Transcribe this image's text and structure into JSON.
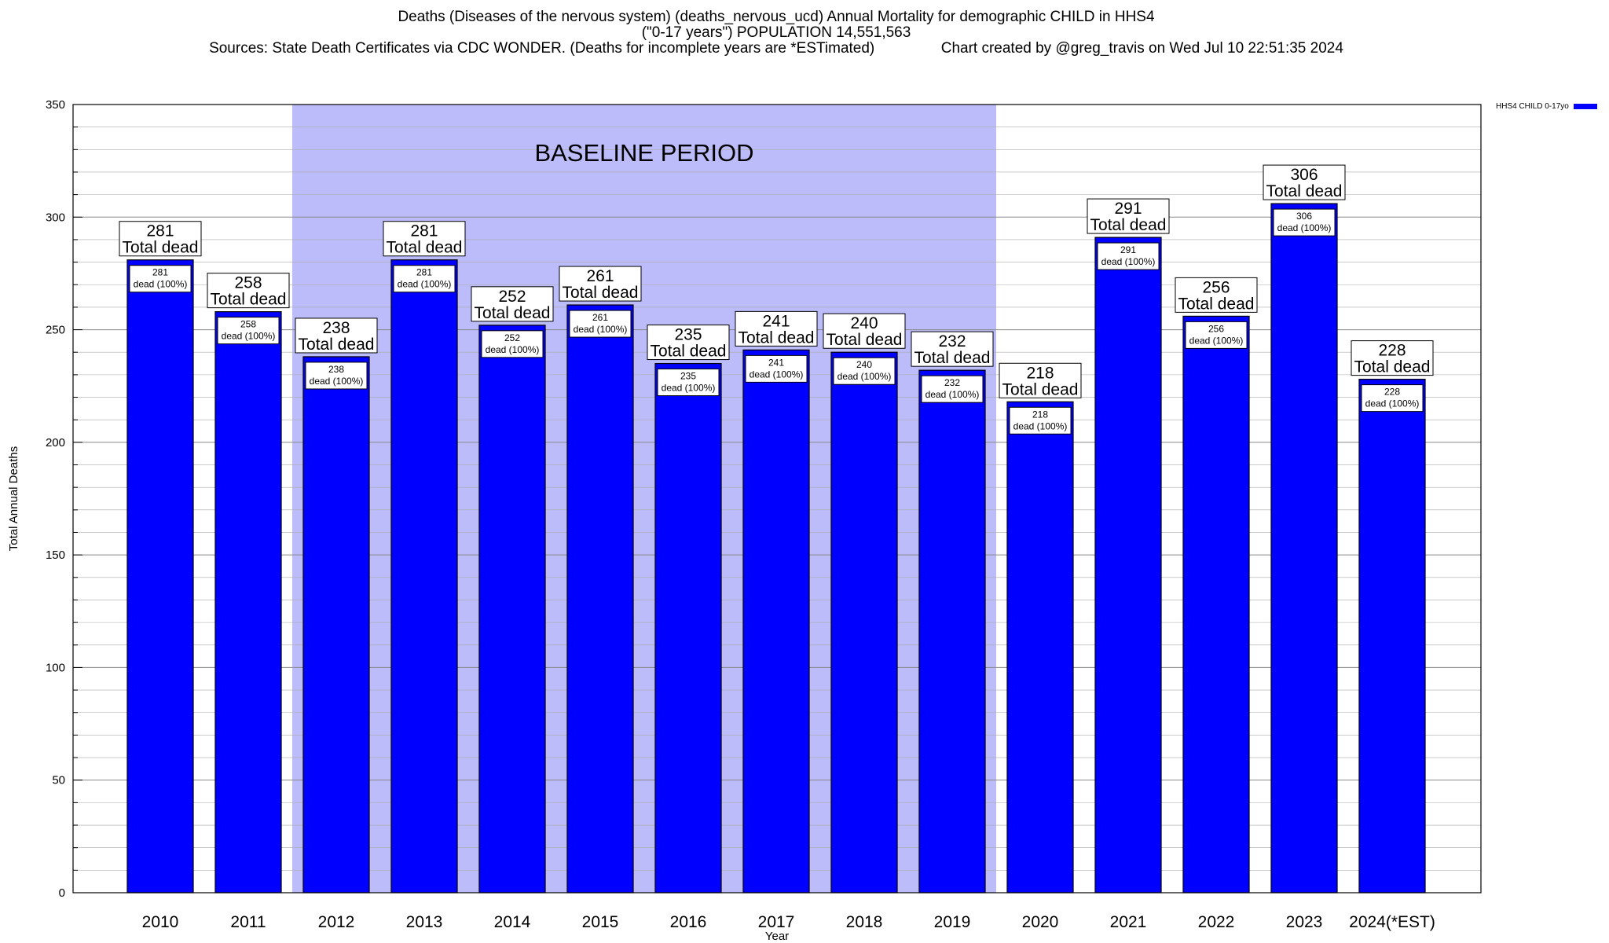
{
  "titles": {
    "line1": "Deaths (Diseases of the nervous system) (deaths_nervous_ucd) Annual Mortality for demographic CHILD in HHS4",
    "line2": "(\"0-17 years\") POPULATION 14,551,563",
    "line3": "Sources: State Death Certificates via CDC WONDER. (Deaths for incomplete years are *ESTimated)                Chart created by @greg_travis on Wed Jul 10 22:51:35 2024"
  },
  "legend": {
    "label": "HHS4 CHILD 0-17yo",
    "color": "#0000ff"
  },
  "colors": {
    "bar": "#0000ff",
    "baseline_band": "#bcbcfb",
    "grid": "#aaaaaa"
  },
  "chart_data": {
    "type": "bar",
    "xlabel": "Year",
    "ylabel": "Total Annual Deaths",
    "ylim": [
      0,
      350
    ],
    "yticks": [
      0,
      50,
      100,
      150,
      200,
      250,
      300,
      350
    ],
    "grid": true,
    "legend_position": "top-right",
    "categories": [
      "2010",
      "2011",
      "2012",
      "2013",
      "2014",
      "2015",
      "2016",
      "2017",
      "2018",
      "2019",
      "2020",
      "2021",
      "2022",
      "2023",
      "2024(*EST)"
    ],
    "series": [
      {
        "name": "HHS4 CHILD 0-17yo",
        "values": [
          281,
          258,
          238,
          281,
          252,
          261,
          235,
          241,
          240,
          232,
          218,
          291,
          256,
          306,
          228
        ]
      }
    ],
    "top_label_text": "Total dead",
    "inner_label_text": "dead (100%)",
    "baseline": {
      "label": "BASELINE PERIOD",
      "start": "2012",
      "end": "2019"
    }
  }
}
